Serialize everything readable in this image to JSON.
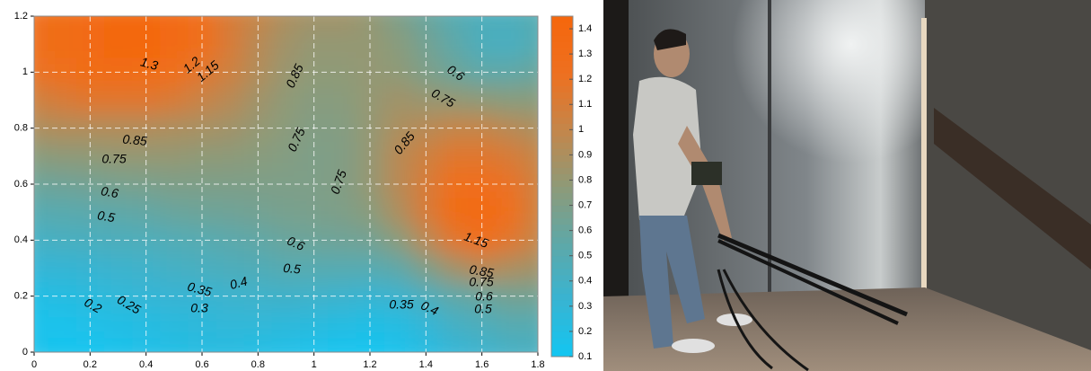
{
  "chart_data": {
    "type": "contour",
    "x": [
      0,
      0.1,
      0.2,
      0.3,
      0.4,
      0.5,
      0.6,
      0.7,
      0.8,
      0.9,
      1,
      1.1,
      1.2,
      1.3,
      1.4,
      1.5,
      1.6,
      1.7,
      1.8
    ],
    "y": [
      1.2,
      1.1,
      1,
      0.9,
      0.8,
      0.7,
      0.6,
      0.5,
      0.4,
      0.3,
      0.2,
      0.1,
      0
    ],
    "z": [
      [
        1.25,
        1.3,
        1.35,
        1.4,
        1.4,
        1.35,
        1.25,
        1.1,
        1.0,
        0.9,
        0.85,
        0.85,
        0.8,
        0.7,
        0.6,
        0.5,
        0.45,
        0.45,
        0.5
      ],
      [
        1.25,
        1.3,
        1.35,
        1.4,
        1.42,
        1.35,
        1.25,
        1.1,
        0.95,
        0.85,
        0.8,
        0.8,
        0.8,
        0.75,
        0.65,
        0.55,
        0.45,
        0.42,
        0.5
      ],
      [
        1.2,
        1.25,
        1.3,
        1.32,
        1.3,
        1.25,
        1.15,
        1.05,
        0.92,
        0.82,
        0.78,
        0.78,
        0.8,
        0.78,
        0.7,
        0.62,
        0.55,
        0.55,
        0.6
      ],
      [
        1.05,
        1.1,
        1.15,
        1.15,
        1.15,
        1.1,
        1.02,
        0.95,
        0.85,
        0.78,
        0.74,
        0.75,
        0.8,
        0.85,
        0.82,
        0.8,
        0.78,
        0.75,
        0.75
      ],
      [
        0.9,
        0.92,
        0.92,
        0.92,
        0.92,
        0.9,
        0.88,
        0.85,
        0.8,
        0.76,
        0.72,
        0.73,
        0.8,
        0.9,
        0.95,
        1.0,
        1.0,
        0.95,
        0.9
      ],
      [
        0.75,
        0.77,
        0.78,
        0.8,
        0.8,
        0.8,
        0.78,
        0.77,
        0.75,
        0.73,
        0.7,
        0.72,
        0.8,
        0.95,
        1.05,
        1.15,
        1.15,
        1.1,
        1.0
      ],
      [
        0.62,
        0.63,
        0.65,
        0.67,
        0.68,
        0.7,
        0.7,
        0.7,
        0.7,
        0.7,
        0.7,
        0.72,
        0.8,
        0.95,
        1.1,
        1.25,
        1.28,
        1.2,
        1.05
      ],
      [
        0.5,
        0.52,
        0.53,
        0.55,
        0.57,
        0.6,
        0.62,
        0.63,
        0.65,
        0.67,
        0.68,
        0.7,
        0.75,
        0.9,
        1.1,
        1.3,
        1.38,
        1.25,
        1.05
      ],
      [
        0.4,
        0.42,
        0.43,
        0.45,
        0.46,
        0.48,
        0.5,
        0.53,
        0.56,
        0.6,
        0.62,
        0.63,
        0.65,
        0.75,
        0.95,
        1.15,
        1.25,
        1.15,
        1.0
      ],
      [
        0.3,
        0.31,
        0.33,
        0.35,
        0.37,
        0.4,
        0.42,
        0.45,
        0.47,
        0.5,
        0.5,
        0.5,
        0.5,
        0.55,
        0.7,
        0.85,
        0.95,
        0.9,
        0.85
      ],
      [
        0.2,
        0.22,
        0.25,
        0.28,
        0.3,
        0.32,
        0.33,
        0.35,
        0.37,
        0.38,
        0.37,
        0.35,
        0.33,
        0.35,
        0.45,
        0.55,
        0.6,
        0.65,
        0.65
      ],
      [
        0.15,
        0.15,
        0.18,
        0.2,
        0.22,
        0.25,
        0.27,
        0.28,
        0.28,
        0.27,
        0.25,
        0.22,
        0.2,
        0.22,
        0.3,
        0.4,
        0.45,
        0.5,
        0.5
      ],
      [
        0.15,
        0.12,
        0.12,
        0.15,
        0.18,
        0.2,
        0.22,
        0.22,
        0.2,
        0.18,
        0.15,
        0.12,
        0.12,
        0.15,
        0.22,
        0.3,
        0.35,
        0.4,
        0.42
      ]
    ],
    "contour_labels": [
      1.3,
      1.2,
      1.15,
      0.85,
      0.6,
      0.75,
      0.85,
      0.75,
      0.75,
      0.85,
      0.75,
      0.6,
      0.5,
      0.6,
      0.5,
      0.4,
      0.35,
      0.3,
      0.25,
      0.2,
      0.35,
      0.4,
      1.15,
      0.85,
      0.75,
      0.6,
      0.5
    ],
    "xlim": [
      0,
      1.8
    ],
    "xticks": [
      0,
      0.2,
      0.4,
      0.6,
      0.8,
      1,
      1.2,
      1.4,
      1.6,
      1.8
    ],
    "ylim": [
      0,
      1.2
    ],
    "yticks": [
      0,
      0.2,
      0.4,
      0.6,
      0.8,
      1,
      1.2
    ],
    "zlim": [
      0.1,
      1.45
    ],
    "colorbar_ticks": [
      0.1,
      0.2,
      0.3,
      0.4,
      0.5,
      0.6,
      0.7,
      0.8,
      0.9,
      1,
      1.1,
      1.2,
      1.3,
      1.4
    ],
    "colormap": [
      "#12c6f2",
      "#38b4d2",
      "#5ea8a8",
      "#8e9a78",
      "#c4864a",
      "#ee7020",
      "#f5660c"
    ],
    "grid": true
  }
}
